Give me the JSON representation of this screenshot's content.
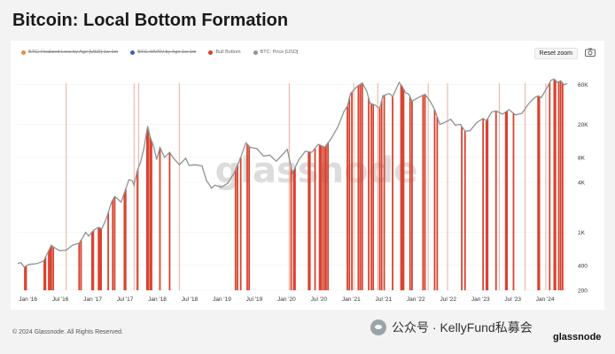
{
  "title": "Bitcoin: Local Bottom Formation",
  "reset_zoom_label": "Reset zoom",
  "footer_text": "© 2024 Glassnode. All Rights Reserved.",
  "watermark_text": "glassnode",
  "wechat_text": "公众号 · KellyFund私募会",
  "brand_text": "glassnode",
  "colors": {
    "price_line": "#8c9496",
    "bull_bottom": "#d9432f",
    "bull_bottom_light": "#ecad9f",
    "realized_loss": "#ee8a3c",
    "mvrv": "#3a5fbf"
  },
  "chart_data": {
    "type": "line",
    "title": "Bitcoin: Local Bottom Formation",
    "legend": [
      {
        "label": "BTC: Realized Loss by Age [USD] 1w-1m",
        "color": "#ee8a3c",
        "active": false
      },
      {
        "label": "BTC: MVRV by Age 1w-1m",
        "color": "#3a5fbf",
        "active": false
      },
      {
        "label": "Bull Bottom",
        "color": "#d9432f",
        "active": true
      },
      {
        "label": "BTC: Price [USD]",
        "color": "#8c9496",
        "active": true
      }
    ],
    "legend_position": "top-left",
    "y_scale": "log",
    "ylim": [
      200,
      80000
    ],
    "y_ticks": [
      {
        "label": "200",
        "value": 200
      },
      {
        "label": "400",
        "value": 400
      },
      {
        "label": "1K",
        "value": 1000
      },
      {
        "label": "4K",
        "value": 4000
      },
      {
        "label": "8K",
        "value": 8000
      },
      {
        "label": "20K",
        "value": 20000
      },
      {
        "label": "60K",
        "value": 60000
      }
    ],
    "x_ticks": [
      "Jan '16",
      "Jul '16",
      "Jan '17",
      "Jul '17",
      "Jan '18",
      "Jul '18",
      "Jan '19",
      "Jul '19",
      "Jan '20",
      "Jul '20",
      "Jan '21",
      "Jul '21",
      "Jan '22",
      "Jul '22",
      "Jan '23",
      "Jul '23",
      "Jan '24"
    ],
    "xlim": [
      2015.95,
      2024.45
    ],
    "series": [
      {
        "name": "BTC: Price [USD]",
        "points": [
          [
            2015.95,
            420
          ],
          [
            2016.0,
            430
          ],
          [
            2016.05,
            380
          ],
          [
            2016.12,
            410
          ],
          [
            2016.25,
            420
          ],
          [
            2016.35,
            450
          ],
          [
            2016.42,
            580
          ],
          [
            2016.47,
            700
          ],
          [
            2016.52,
            650
          ],
          [
            2016.6,
            600
          ],
          [
            2016.7,
            610
          ],
          [
            2016.8,
            700
          ],
          [
            2016.9,
            740
          ],
          [
            2016.97,
            900
          ],
          [
            2017.0,
            1000
          ],
          [
            2017.05,
            900
          ],
          [
            2017.12,
            1050
          ],
          [
            2017.2,
            1150
          ],
          [
            2017.25,
            1100
          ],
          [
            2017.32,
            1450
          ],
          [
            2017.4,
            2300
          ],
          [
            2017.45,
            2700
          ],
          [
            2017.5,
            2500
          ],
          [
            2017.55,
            2300
          ],
          [
            2017.6,
            3000
          ],
          [
            2017.67,
            4300
          ],
          [
            2017.72,
            4200
          ],
          [
            2017.75,
            3700
          ],
          [
            2017.8,
            5500
          ],
          [
            2017.85,
            7000
          ],
          [
            2017.9,
            10000
          ],
          [
            2017.96,
            19000
          ],
          [
            2018.0,
            14000
          ],
          [
            2018.05,
            11000
          ],
          [
            2018.1,
            7500
          ],
          [
            2018.15,
            10500
          ],
          [
            2018.22,
            8000
          ],
          [
            2018.3,
            9200
          ],
          [
            2018.35,
            8000
          ],
          [
            2018.45,
            6500
          ],
          [
            2018.55,
            7800
          ],
          [
            2018.6,
            6400
          ],
          [
            2018.7,
            6500
          ],
          [
            2018.8,
            6300
          ],
          [
            2018.87,
            4200
          ],
          [
            2018.95,
            3400
          ],
          [
            2019.0,
            3700
          ],
          [
            2019.1,
            3500
          ],
          [
            2019.2,
            3900
          ],
          [
            2019.3,
            5200
          ],
          [
            2019.4,
            8000
          ],
          [
            2019.48,
            12000
          ],
          [
            2019.55,
            10500
          ],
          [
            2019.65,
            10200
          ],
          [
            2019.75,
            8300
          ],
          [
            2019.85,
            8500
          ],
          [
            2019.95,
            7200
          ],
          [
            2020.05,
            8700
          ],
          [
            2020.12,
            10000
          ],
          [
            2020.2,
            5200
          ],
          [
            2020.3,
            7500
          ],
          [
            2020.4,
            9500
          ],
          [
            2020.5,
            9200
          ],
          [
            2020.6,
            11500
          ],
          [
            2020.7,
            10600
          ],
          [
            2020.8,
            13500
          ],
          [
            2020.9,
            18500
          ],
          [
            2021.0,
            29000
          ],
          [
            2021.05,
            33000
          ],
          [
            2021.1,
            47000
          ],
          [
            2021.2,
            57000
          ],
          [
            2021.28,
            63000
          ],
          [
            2021.35,
            50000
          ],
          [
            2021.4,
            36000
          ],
          [
            2021.48,
            34000
          ],
          [
            2021.55,
            31000
          ],
          [
            2021.6,
            44000
          ],
          [
            2021.7,
            47000
          ],
          [
            2021.75,
            43000
          ],
          [
            2021.85,
            64000
          ],
          [
            2021.9,
            57000
          ],
          [
            2021.95,
            48000
          ],
          [
            2022.0,
            46000
          ],
          [
            2022.05,
            38000
          ],
          [
            2022.15,
            42000
          ],
          [
            2022.25,
            46000
          ],
          [
            2022.33,
            38000
          ],
          [
            2022.4,
            30000
          ],
          [
            2022.48,
            20000
          ],
          [
            2022.55,
            21000
          ],
          [
            2022.65,
            23000
          ],
          [
            2022.72,
            19500
          ],
          [
            2022.8,
            20000
          ],
          [
            2022.87,
            16500
          ],
          [
            2022.95,
            16800
          ],
          [
            2023.05,
            21000
          ],
          [
            2023.15,
            23500
          ],
          [
            2023.2,
            22000
          ],
          [
            2023.28,
            28000
          ],
          [
            2023.35,
            29000
          ],
          [
            2023.45,
            26500
          ],
          [
            2023.55,
            30000
          ],
          [
            2023.65,
            26000
          ],
          [
            2023.75,
            27000
          ],
          [
            2023.85,
            35000
          ],
          [
            2023.95,
            42000
          ],
          [
            2024.0,
            44000
          ],
          [
            2024.05,
            42000
          ],
          [
            2024.12,
            52000
          ],
          [
            2024.2,
            68000
          ],
          [
            2024.25,
            70000
          ],
          [
            2024.3,
            64000
          ],
          [
            2024.35,
            67000
          ],
          [
            2024.4,
            60000
          ],
          [
            2024.45,
            62000
          ]
        ]
      },
      {
        "name": "Bull Bottom",
        "marks": [
          2016.06,
          2016.08,
          2016.36,
          2016.38,
          2016.43,
          2016.45,
          2016.47,
          2016.5,
          2016.9,
          2016.93,
          2017.1,
          2017.12,
          2017.2,
          2017.22,
          2017.24,
          2017.35,
          2017.42,
          2017.45,
          2017.6,
          2017.62,
          2017.8,
          2017.95,
          2017.97,
          2018.0,
          2018.02,
          2018.15,
          2018.3,
          2019.32,
          2019.35,
          2019.4,
          2019.5,
          2019.53,
          2020.18,
          2020.22,
          2020.24,
          2020.45,
          2020.47,
          2020.55,
          2020.62,
          2020.64,
          2020.67,
          2020.7,
          2020.72,
          2020.75,
          2021.05,
          2021.08,
          2021.12,
          2021.22,
          2021.25,
          2021.28,
          2021.38,
          2021.42,
          2021.45,
          2021.55,
          2021.58,
          2021.62,
          2021.75,
          2021.88,
          2021.9,
          2021.92,
          2022.02,
          2022.05,
          2022.22,
          2022.25,
          2022.4,
          2022.44,
          2022.82,
          2022.87,
          2023.15,
          2023.2,
          2023.22,
          2023.35,
          2023.5,
          2023.52,
          2023.62,
          2024.0,
          2024.02,
          2024.18,
          2024.25,
          2024.27,
          2024.32,
          2024.35,
          2024.38
        ],
        "light_marks": [
          2016.7,
          2017.75,
          2017.82,
          2018.45,
          2020.15,
          2021.15,
          2021.52,
          2022.3,
          2022.6,
          2023.4,
          2023.8,
          2024.12
        ]
      }
    ]
  }
}
